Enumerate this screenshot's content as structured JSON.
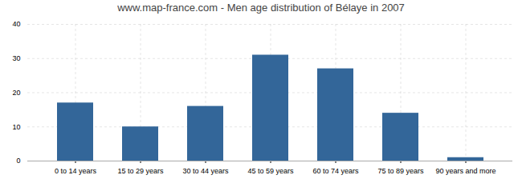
{
  "chart_data": {
    "type": "bar",
    "title": "www.map-france.com - Men age distribution of Bélaye in 2007",
    "categories": [
      "0 to 14 years",
      "15 to 29 years",
      "30 to 44 years",
      "45 to 59 years",
      "60 to 74 years",
      "75 to 89 years",
      "90 years and more"
    ],
    "values": [
      17,
      10,
      16,
      31,
      27,
      14,
      1
    ],
    "color": "#336699",
    "ylim": [
      0,
      40
    ],
    "yticks": [
      0,
      10,
      20,
      30,
      40
    ],
    "grid": true
  }
}
